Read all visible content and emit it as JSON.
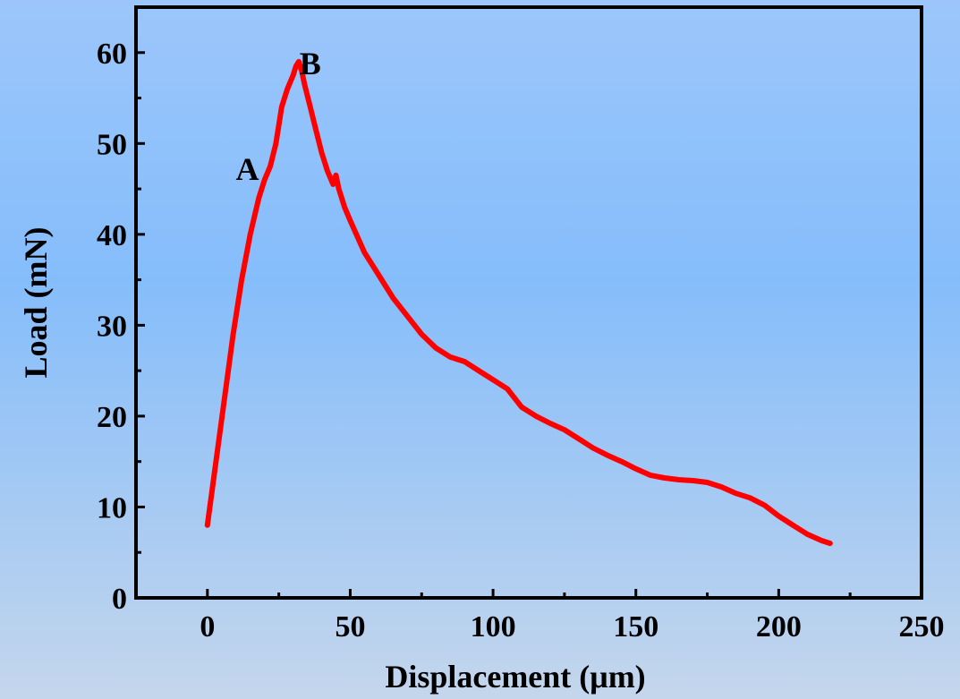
{
  "chart_data": {
    "type": "line",
    "xlabel": "Displacement (μm)",
    "ylabel": "Load (mN)",
    "xlim": [
      -25,
      250
    ],
    "ylim": [
      0,
      65
    ],
    "xticks": [
      0,
      50,
      100,
      150,
      200,
      250
    ],
    "yticks": [
      0,
      10,
      20,
      30,
      40,
      50,
      60
    ],
    "x_minor_step": 25,
    "y_minor_step": 5,
    "grid": false,
    "line_color": "#ff0000",
    "series": [
      {
        "x": [
          0,
          3,
          6,
          9,
          12,
          15,
          18,
          20,
          22,
          24,
          26,
          28,
          30,
          31,
          32,
          33,
          34,
          36,
          38,
          40,
          42,
          44,
          45,
          46,
          47,
          48,
          50,
          55,
          60,
          65,
          70,
          75,
          80,
          85,
          90,
          95,
          100,
          105,
          110,
          115,
          120,
          125,
          130,
          135,
          140,
          145,
          150,
          155,
          160,
          165,
          170,
          175,
          180,
          185,
          190,
          195,
          200,
          205,
          210,
          215,
          218
        ],
        "y": [
          8,
          15,
          22,
          29,
          35,
          40,
          44,
          46,
          47.5,
          50,
          54,
          56,
          57.5,
          58.5,
          59,
          58,
          56.5,
          54,
          51.5,
          49,
          47,
          45.5,
          46.5,
          45,
          44,
          43,
          41.5,
          38,
          35.5,
          33,
          31,
          29,
          27.5,
          26.5,
          26,
          25,
          24,
          23,
          21,
          20,
          19.2,
          18.5,
          17.5,
          16.5,
          15.7,
          15,
          14.2,
          13.5,
          13.2,
          13,
          12.9,
          12.7,
          12.2,
          11.5,
          11,
          10.2,
          9,
          8,
          7,
          6.3,
          6
        ]
      }
    ],
    "annotations": [
      {
        "text": "A",
        "x": 14,
        "y": 46
      },
      {
        "text": "B",
        "x": 36,
        "y": 57.6
      }
    ]
  }
}
